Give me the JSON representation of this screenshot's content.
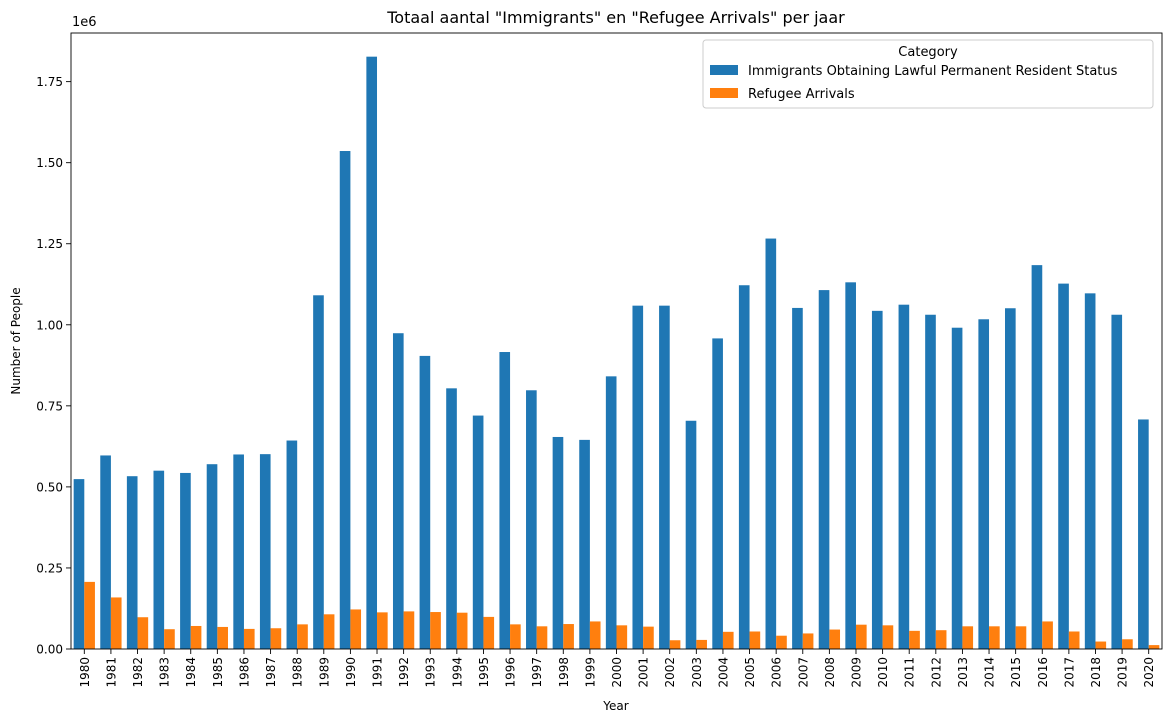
{
  "chart_data": {
    "type": "bar",
    "title": "Totaal aantal \"Immigrants\" en \"Refugee Arrivals\" per jaar",
    "xlabel": "Year",
    "ylabel": "Number of People",
    "y_scale_label": "1e6",
    "ylim": [
      0,
      1.9
    ],
    "y_unit_multiplier": 1000000,
    "y_ticks": [
      "0.00",
      "0.25",
      "0.50",
      "0.75",
      "1.00",
      "1.25",
      "1.50",
      "1.75"
    ],
    "legend_title": "Category",
    "legend_position": "top-right",
    "grid": false,
    "categories": [
      "1980",
      "1981",
      "1982",
      "1983",
      "1984",
      "1985",
      "1986",
      "1987",
      "1988",
      "1989",
      "1990",
      "1991",
      "1992",
      "1993",
      "1994",
      "1995",
      "1996",
      "1997",
      "1998",
      "1999",
      "2000",
      "2001",
      "2002",
      "2003",
      "2004",
      "2005",
      "2006",
      "2007",
      "2008",
      "2009",
      "2010",
      "2011",
      "2012",
      "2013",
      "2014",
      "2015",
      "2016",
      "2017",
      "2018",
      "2019",
      "2020"
    ],
    "series": [
      {
        "name": "Immigrants Obtaining Lawful Permanent Resident Status",
        "color": "#1f77b4",
        "values": [
          0.524,
          0.597,
          0.533,
          0.55,
          0.543,
          0.57,
          0.6,
          0.601,
          0.643,
          1.091,
          1.536,
          1.827,
          0.974,
          0.904,
          0.804,
          0.72,
          0.916,
          0.798,
          0.654,
          0.645,
          0.841,
          1.059,
          1.059,
          0.704,
          0.958,
          1.122,
          1.266,
          1.052,
          1.107,
          1.131,
          1.043,
          1.062,
          1.031,
          0.991,
          1.017,
          1.051,
          1.184,
          1.127,
          1.097,
          1.031,
          0.708
        ]
      },
      {
        "name": "Refugee Arrivals",
        "color": "#ff7f0e",
        "values": [
          0.207,
          0.159,
          0.098,
          0.061,
          0.071,
          0.068,
          0.062,
          0.064,
          0.076,
          0.107,
          0.122,
          0.113,
          0.116,
          0.114,
          0.112,
          0.099,
          0.076,
          0.07,
          0.077,
          0.085,
          0.073,
          0.069,
          0.027,
          0.028,
          0.053,
          0.054,
          0.041,
          0.048,
          0.06,
          0.075,
          0.073,
          0.056,
          0.058,
          0.07,
          0.07,
          0.07,
          0.085,
          0.054,
          0.023,
          0.03,
          0.012
        ]
      }
    ]
  }
}
